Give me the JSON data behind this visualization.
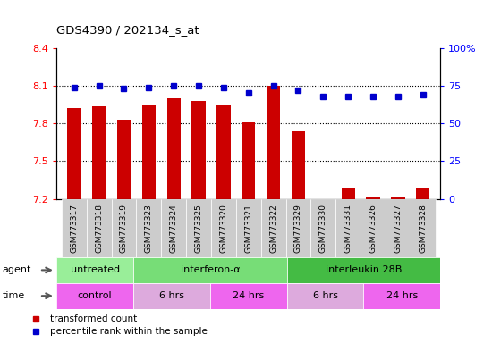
{
  "title": "GDS4390 / 202134_s_at",
  "samples": [
    "GSM773317",
    "GSM773318",
    "GSM773319",
    "GSM773323",
    "GSM773324",
    "GSM773325",
    "GSM773320",
    "GSM773321",
    "GSM773322",
    "GSM773329",
    "GSM773330",
    "GSM773331",
    "GSM773326",
    "GSM773327",
    "GSM773328"
  ],
  "red_values": [
    7.92,
    7.94,
    7.83,
    7.95,
    8.0,
    7.98,
    7.95,
    7.81,
    8.1,
    7.74,
    7.2,
    7.29,
    7.22,
    7.21,
    7.29
  ],
  "blue_values": [
    74,
    75,
    73,
    74,
    75,
    75,
    74,
    70,
    75,
    72,
    68,
    68,
    68,
    68,
    69
  ],
  "ylim_left": [
    7.2,
    8.4
  ],
  "ylim_right": [
    0,
    100
  ],
  "yticks_left": [
    7.2,
    7.5,
    7.8,
    8.1,
    8.4
  ],
  "yticks_right": [
    0,
    25,
    50,
    75,
    100
  ],
  "ytick_labels_left": [
    "7.2",
    "7.5",
    "7.8",
    "8.1",
    "8.4"
  ],
  "ytick_labels_right": [
    "0",
    "25",
    "50",
    "75",
    "100%"
  ],
  "hlines": [
    7.5,
    7.8,
    8.1
  ],
  "agent_groups": [
    {
      "label": "untreated",
      "start": 0,
      "end": 3,
      "color": "#99ee99"
    },
    {
      "label": "interferon-α",
      "start": 3,
      "end": 9,
      "color": "#77dd77"
    },
    {
      "label": "interleukin 28B",
      "start": 9,
      "end": 15,
      "color": "#44bb44"
    }
  ],
  "time_groups": [
    {
      "label": "control",
      "start": 0,
      "end": 3,
      "color": "#ee66ee"
    },
    {
      "label": "6 hrs",
      "start": 3,
      "end": 6,
      "color": "#ddaadd"
    },
    {
      "label": "24 hrs",
      "start": 6,
      "end": 9,
      "color": "#ee66ee"
    },
    {
      "label": "6 hrs",
      "start": 9,
      "end": 12,
      "color": "#ddaadd"
    },
    {
      "label": "24 hrs",
      "start": 12,
      "end": 15,
      "color": "#ee66ee"
    }
  ],
  "bar_color": "#cc0000",
  "dot_color": "#0000cc",
  "tick_bg_color": "#cccccc",
  "border_color": "#888888"
}
